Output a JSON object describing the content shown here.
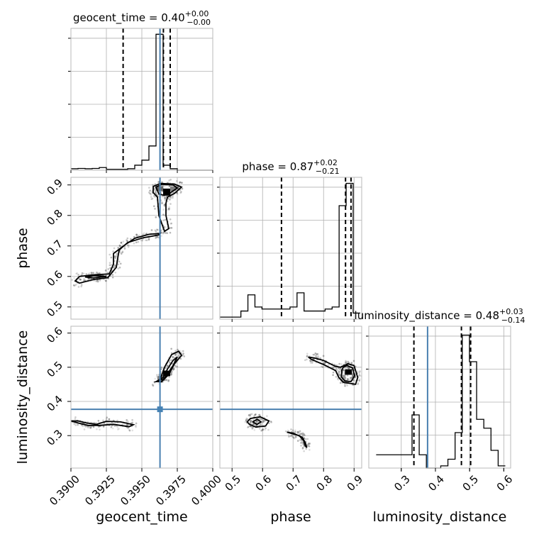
{
  "chart_data": {
    "type": "corner",
    "colors": {
      "truth": "#4682b4",
      "histogram": "#000000",
      "grid": "#b0b0b0"
    },
    "parameters": [
      {
        "name": "geocent_time",
        "xlabel": "geocent_time",
        "title_main": "geocent_time = 0.40",
        "title_sup": "+0.00",
        "title_sub": "−0.00",
        "range": [
          0.39,
          0.4
        ],
        "ticks": [
          {
            "v": 0.39,
            "label": "0.3900"
          },
          {
            "v": 0.3925,
            "label": "0.3925"
          },
          {
            "v": 0.395,
            "label": "0.3950"
          },
          {
            "v": 0.3975,
            "label": "0.3975"
          },
          {
            "v": 0.4,
            "label": "0.4000"
          }
        ],
        "truth": 0.39628,
        "quantiles": [
          0.39368,
          0.39652,
          0.397
        ],
        "hist": {
          "edges": [
            0.39,
            0.3905,
            0.391,
            0.3915,
            0.392,
            0.3925,
            0.393,
            0.3935,
            0.394,
            0.3945,
            0.395,
            0.3955,
            0.396,
            0.3965,
            0.397,
            0.3975,
            0.398,
            0.3985,
            0.399,
            0.3995,
            0.4
          ],
          "values": [
            0.05,
            0.06,
            0.05,
            0.06,
            0.09,
            0.03,
            0.03,
            0.03,
            0.05,
            0.17,
            0.34,
            0.82,
            4.6,
            0.17,
            0.05,
            0,
            0,
            0,
            0,
            0
          ],
          "ymax": 4.8
        }
      },
      {
        "name": "phase",
        "xlabel": "phase",
        "title_main": "phase = 0.87",
        "title_sup": "+0.02",
        "title_sub": "−0.21",
        "range": [
          0.46,
          0.925
        ],
        "ticks": [
          {
            "v": 0.5,
            "label": "0.5"
          },
          {
            "v": 0.6,
            "label": "0.6"
          },
          {
            "v": 0.7,
            "label": "0.7"
          },
          {
            "v": 0.8,
            "label": "0.8"
          },
          {
            "v": 0.9,
            "label": "0.9"
          }
        ],
        "yticks": [
          {
            "v": 0.5,
            "label": "0.5"
          },
          {
            "v": 0.6,
            "label": "0.6"
          },
          {
            "v": 0.7,
            "label": "0.7"
          },
          {
            "v": 0.8,
            "label": "0.8"
          },
          {
            "v": 0.9,
            "label": "0.9"
          }
        ],
        "truth": null,
        "quantiles": [
          0.662,
          0.872,
          0.89
        ],
        "hist": {
          "edges": [
            0.46,
            0.483,
            0.506,
            0.529,
            0.552,
            0.575,
            0.598,
            0.621,
            0.644,
            0.667,
            0.69,
            0.713,
            0.736,
            0.759,
            0.782,
            0.805,
            0.828,
            0.851,
            0.874,
            0.897,
            0.92
          ],
          "values": [
            0.1,
            0.1,
            0.1,
            0.4,
            1.2,
            0.6,
            0.5,
            0.5,
            0.5,
            0.5,
            0.6,
            1.3,
            0.4,
            0.4,
            0.4,
            0.5,
            0.6,
            5.6,
            6.7,
            0.3
          ],
          "ymax": 7.0
        }
      },
      {
        "name": "luminosity_distance",
        "xlabel": "luminosity_distance",
        "title_main": "luminosity_distance = 0.48",
        "title_sup": "+0.03",
        "title_sub": "−0.14",
        "range": [
          0.205,
          0.62
        ],
        "ticks": [
          {
            "v": 0.3,
            "label": "0.3"
          },
          {
            "v": 0.4,
            "label": "0.4"
          },
          {
            "v": 0.5,
            "label": "0.5"
          },
          {
            "v": 0.6,
            "label": "0.6"
          }
        ],
        "yticks": [
          {
            "v": 0.3,
            "label": "0.3"
          },
          {
            "v": 0.4,
            "label": "0.4"
          },
          {
            "v": 0.5,
            "label": "0.5"
          },
          {
            "v": 0.6,
            "label": "0.6"
          }
        ],
        "truth": 0.377,
        "quantiles": [
          0.337,
          0.476,
          0.503
        ],
        "hist": {
          "edges": [
            0.2265,
            0.2475,
            0.2685,
            0.2895,
            0.3105,
            0.3315,
            0.3525,
            0.3735,
            0.3945,
            0.4155,
            0.4365,
            0.4575,
            0.4785,
            0.4995,
            0.5205,
            0.5415,
            0.5625,
            0.5835,
            0.6045
          ],
          "values": [
            0.3,
            0.3,
            0.3,
            0.3,
            0.3,
            1.2,
            0.3,
            0,
            0,
            0.05,
            0.2,
            0.8,
            3.0,
            2.4,
            1.1,
            0.9,
            0.4,
            0.05
          ],
          "ymax": 3.2
        }
      }
    ],
    "pair_panels": [
      {
        "x": "geocent_time",
        "y": "phase",
        "truth_x": 0.39628,
        "truth_y": null,
        "contours": [
          [
            [
              0.3958,
              0.895
            ],
            [
              0.3963,
              0.905
            ],
            [
              0.3973,
              0.903
            ],
            [
              0.3978,
              0.893
            ],
            [
              0.3973,
              0.872
            ],
            [
              0.3968,
              0.86
            ],
            [
              0.3967,
              0.84
            ],
            [
              0.3967,
              0.8
            ],
            [
              0.3969,
              0.757
            ],
            [
              0.3966,
              0.748
            ],
            [
              0.3962,
              0.8
            ],
            [
              0.3961,
              0.86
            ],
            [
              0.3958,
              0.875
            ],
            [
              0.3958,
              0.895
            ]
          ],
          [
            [
              0.396,
              0.893
            ],
            [
              0.3964,
              0.902
            ],
            [
              0.3972,
              0.9
            ],
            [
              0.3975,
              0.89
            ],
            [
              0.397,
              0.874
            ],
            [
              0.3966,
              0.866
            ],
            [
              0.3962,
              0.87
            ],
            [
              0.396,
              0.893
            ]
          ],
          [
            [
              0.3903,
              0.585
            ],
            [
              0.3906,
              0.6
            ],
            [
              0.3915,
              0.605
            ],
            [
              0.3927,
              0.608
            ],
            [
              0.393,
              0.64
            ],
            [
              0.393,
              0.675
            ],
            [
              0.3937,
              0.7
            ],
            [
              0.3945,
              0.725
            ],
            [
              0.3955,
              0.738
            ],
            [
              0.3963,
              0.741
            ],
            [
              0.3962,
              0.736
            ],
            [
              0.3951,
              0.727
            ],
            [
              0.394,
              0.711
            ],
            [
              0.3934,
              0.687
            ],
            [
              0.3933,
              0.66
            ],
            [
              0.3932,
              0.63
            ],
            [
              0.3926,
              0.596
            ],
            [
              0.3916,
              0.59
            ],
            [
              0.3906,
              0.578
            ],
            [
              0.3903,
              0.585
            ]
          ],
          [
            [
              0.391,
              0.598
            ],
            [
              0.3917,
              0.603
            ],
            [
              0.3925,
              0.6
            ],
            [
              0.3916,
              0.595
            ],
            [
              0.391,
              0.598
            ]
          ]
        ],
        "density_blocks": [
          {
            "x": [
              0.3965,
              0.397
            ],
            "y": [
              0.865,
              0.888
            ],
            "level": 1.0
          },
          {
            "x": [
              0.396,
              0.3965
            ],
            "y": [
              0.88,
              0.895
            ],
            "level": 0.6
          },
          {
            "x": [
              0.397,
              0.3974
            ],
            "y": [
              0.88,
              0.895
            ],
            "level": 0.5
          }
        ]
      },
      {
        "x": "geocent_time",
        "y": "luminosity_distance",
        "truth_x": 0.39628,
        "truth_y": 0.377,
        "contours": [
          [
            [
              0.396,
              0.458
            ],
            [
              0.3963,
              0.465
            ],
            [
              0.3966,
              0.5
            ],
            [
              0.3971,
              0.537
            ],
            [
              0.3976,
              0.547
            ],
            [
              0.3978,
              0.535
            ],
            [
              0.3973,
              0.51
            ],
            [
              0.3969,
              0.479
            ],
            [
              0.3964,
              0.458
            ],
            [
              0.396,
              0.458
            ]
          ],
          [
            [
              0.3962,
              0.462
            ],
            [
              0.3965,
              0.47
            ],
            [
              0.3968,
              0.494
            ],
            [
              0.3972,
              0.52
            ],
            [
              0.3975,
              0.53
            ],
            [
              0.3972,
              0.505
            ],
            [
              0.3968,
              0.48
            ],
            [
              0.3965,
              0.464
            ],
            [
              0.3962,
              0.462
            ]
          ],
          [
            [
              0.39,
              0.343
            ],
            [
              0.3905,
              0.343
            ],
            [
              0.3911,
              0.337
            ],
            [
              0.3918,
              0.333
            ],
            [
              0.3925,
              0.342
            ],
            [
              0.3935,
              0.34
            ],
            [
              0.3944,
              0.332
            ],
            [
              0.3941,
              0.326
            ],
            [
              0.393,
              0.333
            ],
            [
              0.392,
              0.33
            ],
            [
              0.3912,
              0.33
            ],
            [
              0.3905,
              0.337
            ],
            [
              0.39,
              0.343
            ]
          ]
        ],
        "density_blocks": [
          {
            "x": [
              0.3965,
              0.397
            ],
            "y": [
              0.474,
              0.49
            ],
            "level": 1.0
          },
          {
            "x": [
              0.3961,
              0.3965
            ],
            "y": [
              0.462,
              0.474
            ],
            "level": 0.5
          }
        ]
      },
      {
        "x": "phase",
        "y": "luminosity_distance",
        "truth_x": null,
        "truth_y": 0.377,
        "contours": [
          [
            [
              0.88,
              0.51
            ],
            [
              0.855,
              0.5
            ],
            [
              0.838,
              0.503
            ],
            [
              0.8,
              0.52
            ],
            [
              0.77,
              0.527
            ],
            [
              0.75,
              0.53
            ],
            [
              0.76,
              0.523
            ],
            [
              0.8,
              0.508
            ],
            [
              0.84,
              0.49
            ],
            [
              0.85,
              0.47
            ],
            [
              0.865,
              0.456
            ],
            [
              0.905,
              0.45
            ],
            [
              0.912,
              0.47
            ],
            [
              0.9,
              0.505
            ],
            [
              0.88,
              0.51
            ]
          ],
          [
            [
              0.865,
              0.5
            ],
            [
              0.877,
              0.505
            ],
            [
              0.895,
              0.498
            ],
            [
              0.902,
              0.475
            ],
            [
              0.89,
              0.458
            ],
            [
              0.87,
              0.46
            ],
            [
              0.858,
              0.472
            ],
            [
              0.86,
              0.492
            ],
            [
              0.865,
              0.5
            ]
          ],
          [
            [
              0.55,
              0.34
            ],
            [
              0.56,
              0.35
            ],
            [
              0.592,
              0.355
            ],
            [
              0.621,
              0.343
            ],
            [
              0.61,
              0.328
            ],
            [
              0.578,
              0.325
            ],
            [
              0.557,
              0.333
            ],
            [
              0.55,
              0.34
            ]
          ],
          [
            [
              0.568,
              0.34
            ],
            [
              0.582,
              0.348
            ],
            [
              0.595,
              0.34
            ],
            [
              0.582,
              0.333
            ],
            [
              0.568,
              0.34
            ]
          ],
          [
            [
              0.68,
              0.31
            ],
            [
              0.72,
              0.3
            ],
            [
              0.735,
              0.285
            ],
            [
              0.74,
              0.27
            ],
            [
              0.745,
              0.265
            ],
            [
              0.74,
              0.28
            ],
            [
              0.73,
              0.295
            ],
            [
              0.7,
              0.307
            ],
            [
              0.68,
              0.31
            ]
          ]
        ],
        "density_blocks": [
          {
            "x": [
              0.87,
              0.893
            ],
            "y": [
              0.478,
              0.494
            ],
            "level": 1.0
          },
          {
            "x": [
              0.893,
              0.905
            ],
            "y": [
              0.468,
              0.482
            ],
            "level": 0.5
          },
          {
            "x": [
              0.86,
              0.872
            ],
            "y": [
              0.465,
              0.478
            ],
            "level": 0.4
          }
        ]
      }
    ]
  }
}
